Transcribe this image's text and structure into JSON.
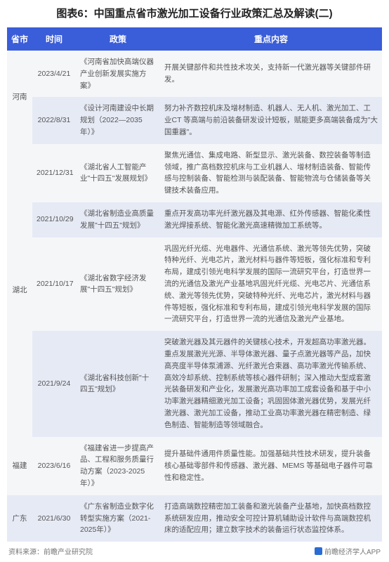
{
  "title": "图表6：中国重点省市激光加工设备行业政策汇总及解读(二)",
  "columns": [
    "省市",
    "时间",
    "政策",
    "重点内容"
  ],
  "col_widths": [
    "36px",
    "62px",
    "120px",
    "auto"
  ],
  "header_bg": "#3a5dd9",
  "header_color": "#ffffff",
  "row_odd_bg": "#f5f6f8",
  "row_even_bg": "#e6eaf5",
  "text_color": "#555555",
  "rows": [
    {
      "province": "河南",
      "province_rowspan": 2,
      "date": "2023/4/21",
      "policy": "《河南省加快高端仪器产业创新发展实施方案》",
      "content": "开展关键部件和共性技术攻关，支持新一代激光器等关键部件研发。",
      "stripe": "odd"
    },
    {
      "date": "2022/8/31",
      "policy": "《设计河南建设中长期规划（2022—2035年）》",
      "content": "努力补齐数控机床及增材制造、机器人、无人机、激光加工、工业CT 等高端与前沿装备研发设计短板，赋能更多高端装备成为\"大国重器\"。",
      "stripe": "even"
    },
    {
      "province": "湖北",
      "province_rowspan": 4,
      "date": "2021/12/31",
      "policy": "《湖北省人工智能产业\"十四五\"发展规划》",
      "content": "聚焦光通信、集成电路、新型显示、激光装备、数控装备等制造领域，推广高档数控机床与工业机器人、增材制造装备、智能传感与控制装备、智能检测与装配装备、智能物流与仓储装备等关键技术装备应用。",
      "stripe": "odd"
    },
    {
      "date": "2021/10/29",
      "policy": "《湖北省制造业高质量发展\"十四五\"规划》",
      "content": "重点开发高功率光纤激光器及其电源、红外传感器、智能化柔性激光焊接系统、智能化激光高速精微加工系统等。",
      "stripe": "even"
    },
    {
      "date": "2021/10/17",
      "policy": "《湖北省数字经济发展\"十四五\"规划》",
      "content": "巩固光纤光缆、光电器件、光通信系统、激光等领先优势，突破特种光纤、光电芯片，激光材料与器件等短板，强化标准和专利布局，建成引领光电科学发展的国际一流研究平台，打造世界一流的光通信及激光产业基地巩固光纤光缆、光电芯片、光通信系统、激光等领先优势，突破特种光纤、光电芯片，激光材料与器件等短板，强化标准和专利布局，建成引领光电科学发展的国际一流研究平台，打造世界一流的光通信及激光产业基地。",
      "stripe": "odd"
    },
    {
      "date": "2021/9/24",
      "policy": "《湖北省科技创新\"十四五\"规划》",
      "content": "突破激光器及其元器件的关键核心技术，开发超高功率激光器。重点发展激光光源、半导体激光器、量子点激光器等产品，加快高亮度半导体泵浦源、光纤激光合束器、高功率激光传输系统、高效冷却系统、控制系统等核心器件研制；深入推动大型成套激光装备研发和产业化，发展激光高功率加工成套设备和基于中小功率激光器精细激光加工设备；巩固固体激光器优势，发展光纤激光器、激光加工设备，推动工业高功率激光器在精密制造、绿色制造、智能制造等领域融合。",
      "stripe": "even"
    },
    {
      "province": "福建",
      "province_rowspan": 1,
      "date": "2023/6/16",
      "policy": "《福建省进一步提高产品、工程和服务质量行动方案（2023-2025年）》",
      "content": "提升基础件通用件质量性能。加强基础共性技术研发，提升装备核心基础零部件和传感器、激光器、MEMS 等基础电子器件可靠性和稳定性。",
      "stripe": "odd"
    },
    {
      "province": "广东",
      "province_rowspan": 1,
      "date": "2021/6/30",
      "policy": "《广东省制造业数字化转型实施方案（2021-2025年）》",
      "content": "打造高端数控精密加工装备和激光装备产业基地，加快高档数控系统研发应用，推动安全可控计算机辅助设计软件与高端数控机床的适配应用；建立数字技术的装备运行状态监控体系。",
      "stripe": "even"
    }
  ],
  "footer_left": "资料来源：前瞻产业研究院",
  "footer_right": "前瞻经济学人APP"
}
